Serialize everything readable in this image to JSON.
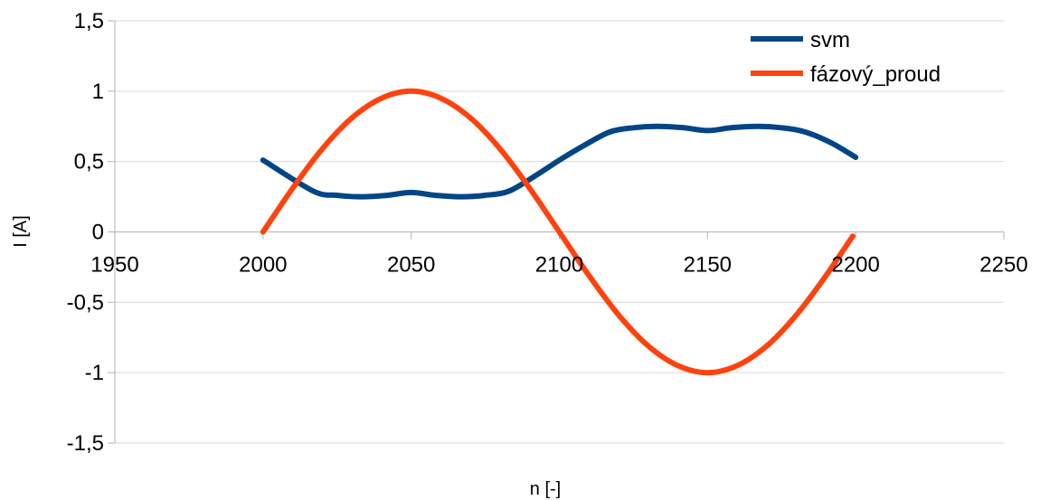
{
  "chart_data": {
    "type": "line",
    "title": "",
    "xlabel": "n [-]",
    "ylabel": "I [A]",
    "xlim": [
      1950,
      2250
    ],
    "ylim": [
      -1.5,
      1.5
    ],
    "x_ticks": [
      1950,
      2000,
      2050,
      2100,
      2150,
      2200,
      2250
    ],
    "x_tick_labels": [
      "1950",
      "2000",
      "2050",
      "2100",
      "2150",
      "2200",
      "2250"
    ],
    "y_ticks": [
      -1.5,
      -1,
      -0.5,
      0,
      0.5,
      1,
      1.5
    ],
    "y_tick_labels": [
      "-1,5",
      "-1",
      "-0,5",
      "0",
      "0,5",
      "1",
      "1,5"
    ],
    "grid": {
      "horizontal": true,
      "vertical": false
    },
    "legend_position": "top-right",
    "series": [
      {
        "name": "svm",
        "color": "#004586",
        "x": [
          2000,
          2017,
          2025,
          2033,
          2042,
          2050,
          2058,
          2067,
          2075,
          2083,
          2092,
          2100,
          2108,
          2117,
          2125,
          2133,
          2142,
          2150,
          2158,
          2167,
          2175,
          2183,
          2192,
          2200
        ],
        "y": [
          0.51,
          0.29,
          0.26,
          0.25,
          0.26,
          0.28,
          0.26,
          0.25,
          0.26,
          0.29,
          0.4,
          0.51,
          0.61,
          0.71,
          0.74,
          0.75,
          0.74,
          0.72,
          0.74,
          0.75,
          0.74,
          0.71,
          0.63,
          0.53
        ]
      },
      {
        "name": "fázový_proud",
        "color": "#ff420e",
        "x": [
          2000,
          2010,
          2020,
          2030,
          2040,
          2050,
          2060,
          2070,
          2080,
          2090,
          2100,
          2110,
          2120,
          2130,
          2140,
          2150,
          2160,
          2170,
          2180,
          2190,
          2199
        ],
        "y": [
          0.0,
          0.31,
          0.59,
          0.81,
          0.95,
          1.0,
          0.95,
          0.81,
          0.59,
          0.31,
          0.0,
          -0.31,
          -0.59,
          -0.81,
          -0.95,
          -1.0,
          -0.95,
          -0.81,
          -0.59,
          -0.31,
          -0.03
        ]
      }
    ]
  }
}
